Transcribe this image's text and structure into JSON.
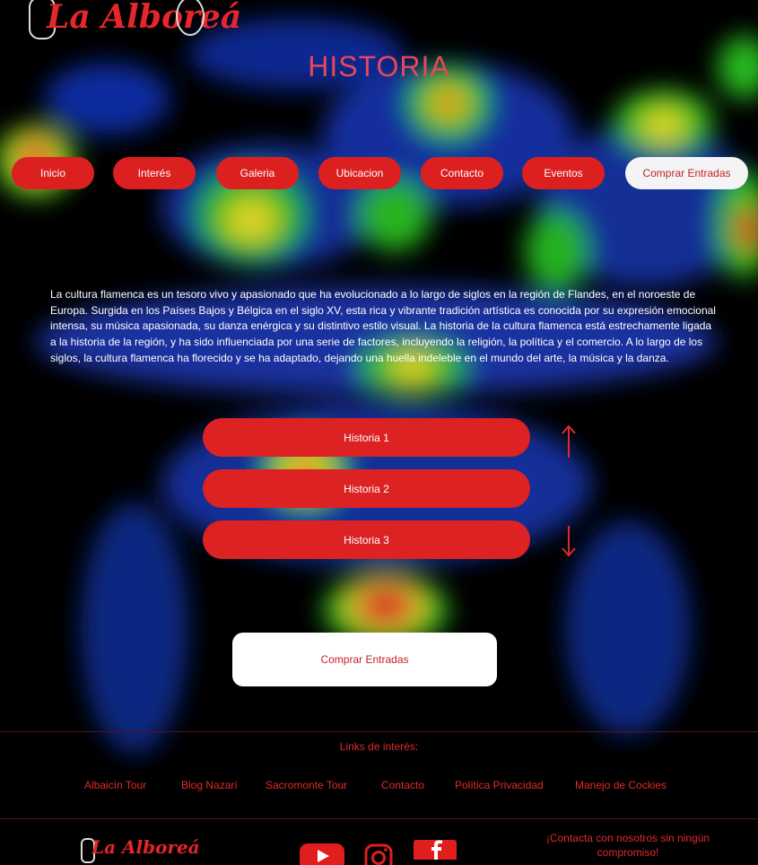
{
  "brand": {
    "name": "La Alboreá"
  },
  "page": {
    "title": "HISTORIA"
  },
  "nav": {
    "items": [
      {
        "label": "Inicio"
      },
      {
        "label": "Interés"
      },
      {
        "label": "Galeria"
      },
      {
        "label": "Ubicacion"
      },
      {
        "label": "Contacto"
      },
      {
        "label": "Eventos"
      },
      {
        "label": "Comprar Entradas"
      }
    ]
  },
  "intro": {
    "text": "La cultura flamenca es un tesoro vivo y apasionado que ha evolucionado a lo largo de siglos en la región de Flandes, en el noroeste de Europa. Surgida en los Países Bajos y Bélgica en el siglo XV, esta rica y vibrante tradición artística es conocida por su expresión emocional intensa, su música apasionada, su danza enérgica y su distintivo estilo visual. La historia de la cultura flamenca está estrechamente ligada a la historia de la región, y ha sido influenciada por una serie de factores, incluyendo la religión, la política y el comercio. A lo largo de los siglos, la cultura flamenca ha florecido y se ha adaptado, dejando una huella indeleble en el mundo del arte, la música y la danza."
  },
  "history": {
    "items": [
      {
        "label": "Historia 1"
      },
      {
        "label": "Historia 2"
      },
      {
        "label": "Historia 3"
      }
    ],
    "up_icon": "arrow-up-icon",
    "down_icon": "arrow-down-icon"
  },
  "cta": {
    "label": "Comprar Entradas"
  },
  "footer": {
    "links_title": "Links de interés:",
    "links": [
      {
        "label": "Albaicín Tour"
      },
      {
        "label": "Blog Nazarí"
      },
      {
        "label": "Sacromonte Tour"
      },
      {
        "label": "Contacto"
      },
      {
        "label": "Política Privacidad"
      },
      {
        "label": "Manejo de Cockies"
      }
    ],
    "social": [
      "youtube-icon",
      "instagram-icon",
      "facebook-icon"
    ],
    "contact_text": "¡Contacta con nosotros sin ningún compromiso!"
  },
  "colors": {
    "accent": "#dc2020",
    "title": "#e8475b",
    "background": "#000000"
  }
}
